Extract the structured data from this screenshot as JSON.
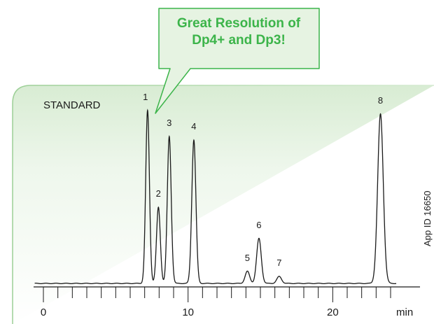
{
  "callout": {
    "line1": "Great Resolution of",
    "line2": "Dp4+ and Dp3!"
  },
  "colors": {
    "accent_green": "#3cb44a",
    "panel_fill": "#e8f4e6",
    "trace": "#1a1a1a"
  },
  "chart_data": {
    "type": "line",
    "title": "STANDARD",
    "xlabel": "min",
    "side_label": "App ID 16650",
    "xlim": [
      0,
      24
    ],
    "x_ticks": [
      0,
      10,
      20
    ],
    "x_tick_labels": [
      "0",
      "10",
      "20"
    ],
    "minor_tick_step": 1,
    "baseline": 0,
    "peaks": [
      {
        "label": "1",
        "rt": 7.2,
        "height": 100
      },
      {
        "label": "2",
        "rt": 7.95,
        "height": 44
      },
      {
        "label": "3",
        "rt": 8.7,
        "height": 85
      },
      {
        "label": "4",
        "rt": 10.4,
        "height": 83
      },
      {
        "label": "5",
        "rt": 14.1,
        "height": 7
      },
      {
        "label": "6",
        "rt": 14.9,
        "height": 26
      },
      {
        "label": "7",
        "rt": 16.3,
        "height": 4
      },
      {
        "label": "8",
        "rt": 23.3,
        "height": 98
      }
    ]
  }
}
